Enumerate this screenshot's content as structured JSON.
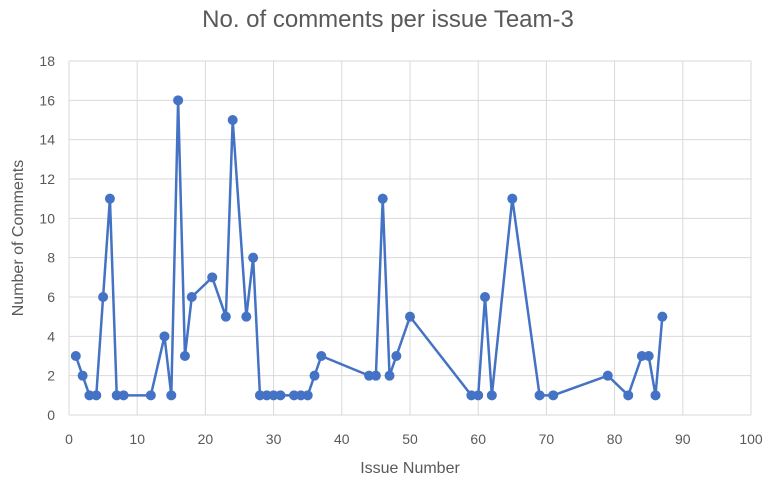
{
  "chart_data": {
    "type": "scatter",
    "title": "No. of comments per issue Team-3",
    "xlabel": "Issue Number",
    "ylabel": "Number of Comments",
    "xlim": [
      0,
      100
    ],
    "ylim": [
      0,
      18
    ],
    "xticks": [
      0,
      10,
      20,
      30,
      40,
      50,
      60,
      70,
      80,
      90,
      100
    ],
    "yticks": [
      0,
      2,
      4,
      6,
      8,
      10,
      12,
      14,
      16,
      18
    ],
    "grid": true,
    "legend": "none",
    "line_color": "#4472c4",
    "series": [
      {
        "x": [
          1,
          2,
          3,
          4,
          5,
          6,
          7,
          8,
          12,
          14,
          15,
          16,
          17,
          18,
          21,
          23,
          24,
          26,
          27,
          28,
          29,
          30,
          31,
          33,
          34,
          35,
          36,
          37,
          44,
          45,
          46,
          47,
          48,
          50,
          59,
          60,
          61,
          62,
          65,
          69,
          71,
          79,
          82,
          84,
          85,
          86,
          87
        ],
        "y": [
          3,
          2,
          1,
          1,
          6,
          11,
          1,
          1,
          1,
          4,
          1,
          16,
          3,
          6,
          7,
          5,
          15,
          5,
          8,
          1,
          1,
          1,
          1,
          1,
          1,
          1,
          2,
          3,
          2,
          2,
          11,
          2,
          3,
          5,
          1,
          1,
          6,
          1,
          11,
          1,
          1,
          2,
          1,
          3,
          3,
          1,
          5
        ]
      }
    ]
  }
}
